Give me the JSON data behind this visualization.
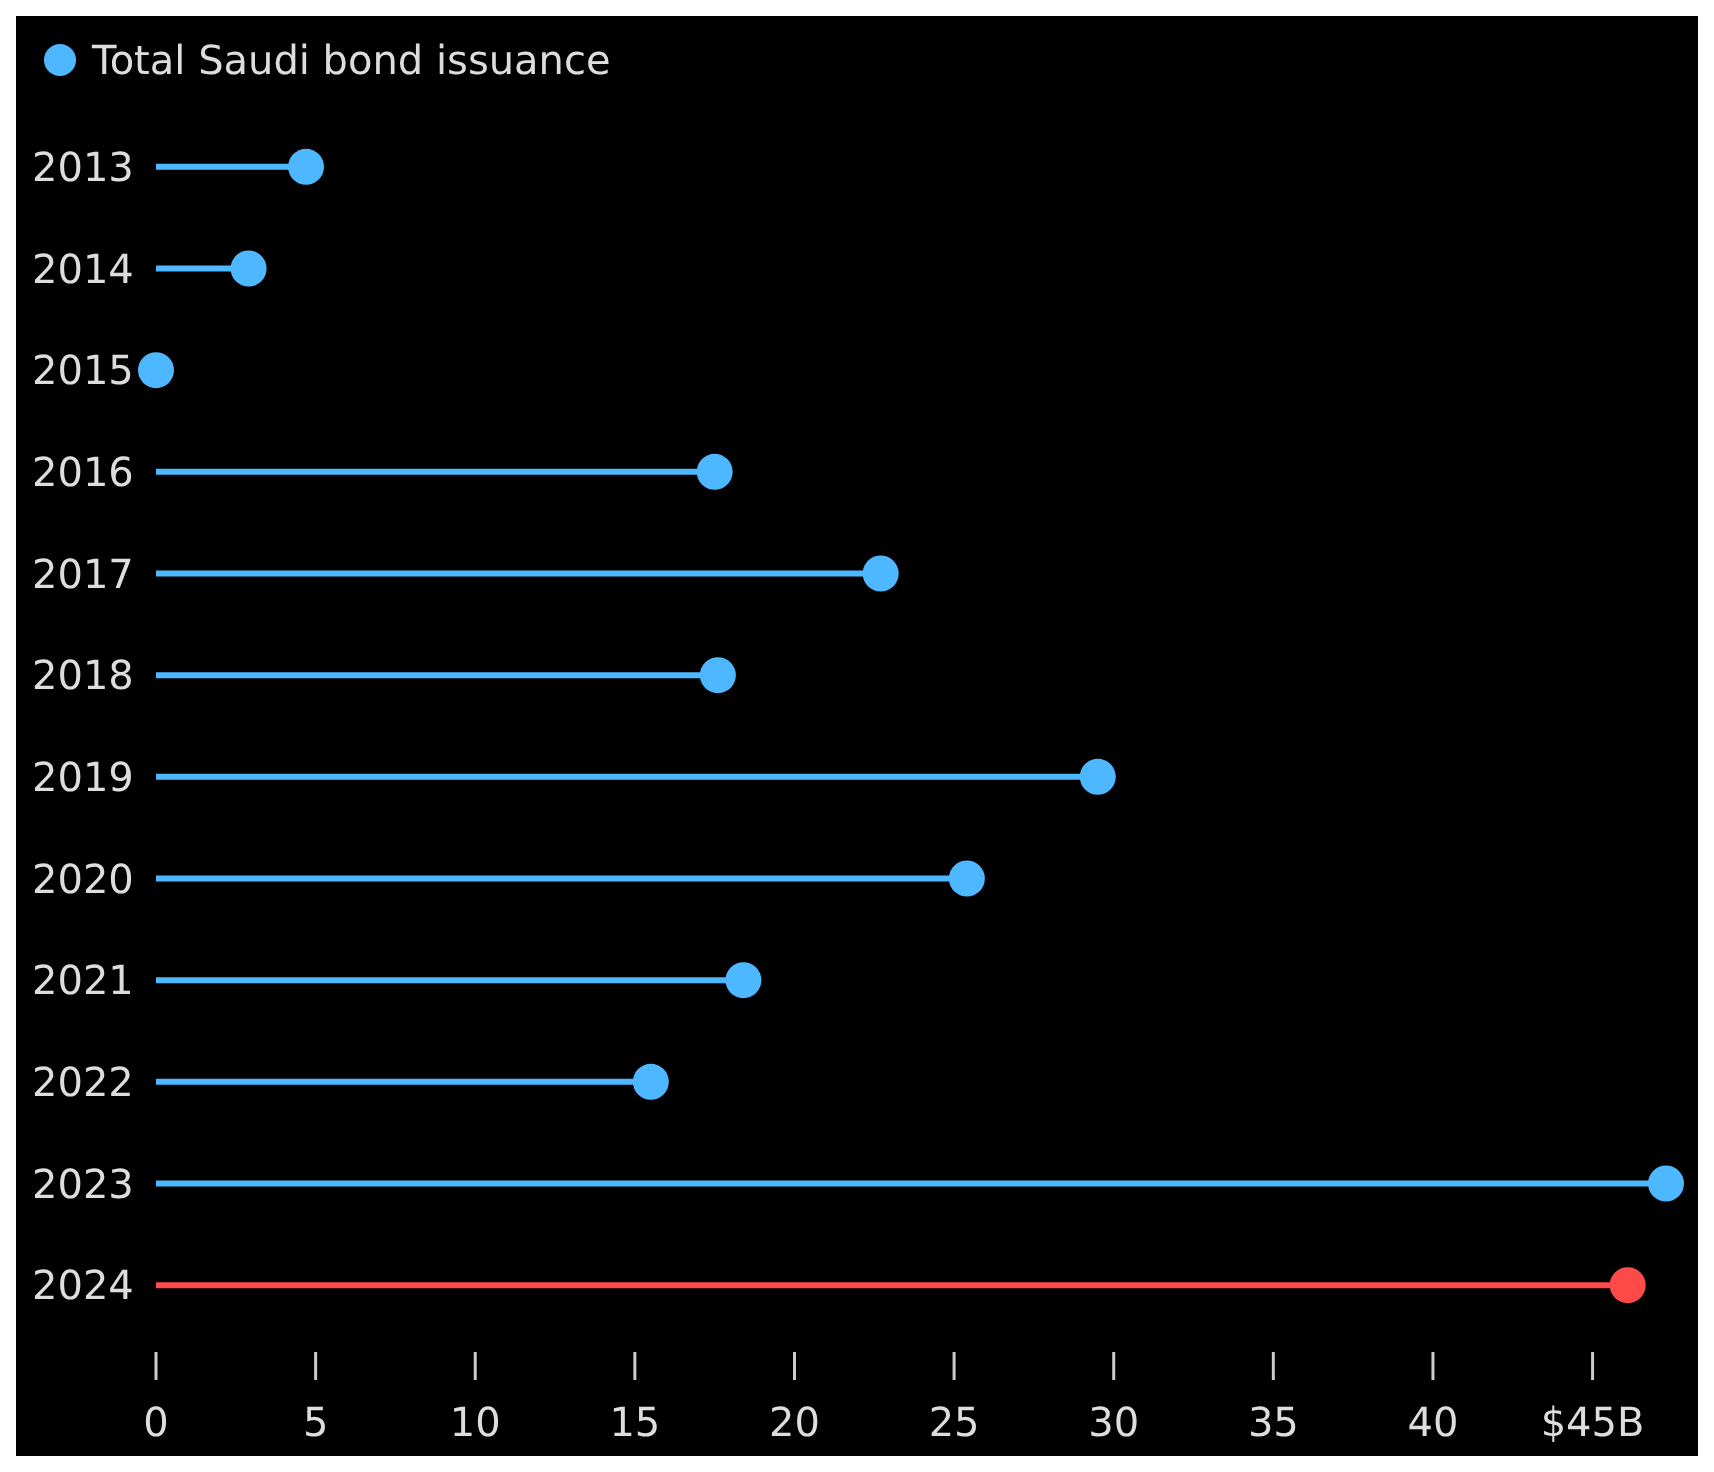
{
  "chart_data": {
    "type": "lollipop",
    "orientation": "horizontal",
    "categories": [
      "2013",
      "2014",
      "2015",
      "2016",
      "2017",
      "2018",
      "2019",
      "2020",
      "2021",
      "2022",
      "2023",
      "2024"
    ],
    "series": [
      {
        "name": "Total Saudi bond issuance",
        "color": "#4db8ff",
        "colors": [
          "#4db8ff",
          "#4db8ff",
          "#4db8ff",
          "#4db8ff",
          "#4db8ff",
          "#4db8ff",
          "#4db8ff",
          "#4db8ff",
          "#4db8ff",
          "#4db8ff",
          "#4db8ff",
          "#ff4a4a"
        ],
        "values": [
          4.7,
          2.9,
          0,
          17.5,
          22.7,
          17.6,
          29.5,
          25.4,
          18.4,
          15.5,
          47.3,
          46.1
        ]
      }
    ],
    "xlim": [
      0,
      47.3
    ],
    "xticks": [
      0,
      5,
      10,
      15,
      20,
      25,
      30,
      35,
      40,
      {
        "value": 45,
        "label": "$45B"
      }
    ],
    "legend": "top left",
    "grid": false,
    "marker": "circle"
  }
}
